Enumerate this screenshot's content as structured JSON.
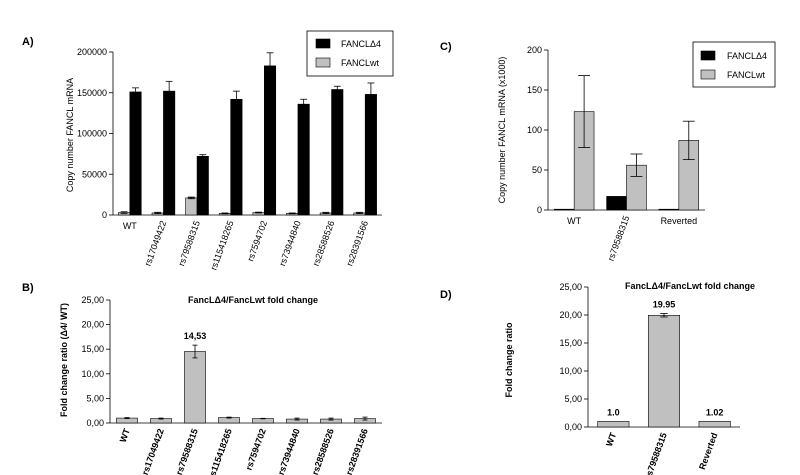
{
  "panels": {
    "A": {
      "label": "A)",
      "ylabel": "Copy number FANCL mRNA",
      "legend": [
        "FANCLΔ4",
        "FANCLwt"
      ]
    },
    "B": {
      "label": "B)",
      "title": "FancLΔ4/FancLwt fold change",
      "ylabel": "Fold change ratio (Δ4/ WT)"
    },
    "C": {
      "label": "C)",
      "ylabel": "Copy number FANCL mRNA (x1000)",
      "legend": [
        "FANCLΔ4",
        "FANCLwt"
      ]
    },
    "D": {
      "label": "D)",
      "title": "FancLΔ4/FancLwt fold change",
      "ylabel": "Fold change ratio"
    }
  },
  "colors": {
    "delta4": "#000000",
    "wt": "#c0c0c0",
    "ratio": "#c0c0c0"
  },
  "chart_data": [
    {
      "id": "A",
      "type": "bar",
      "categories": [
        "WT",
        "rs17049422",
        "rs79588315",
        "rs115418265",
        "rs7594702",
        "rs73944840",
        "rs28588526",
        "rs28391566"
      ],
      "series": [
        {
          "name": "FANCLΔ4",
          "values": [
            151000,
            152000,
            72000,
            142000,
            183000,
            136000,
            154000,
            148000
          ],
          "err": [
            5000,
            12000,
            2000,
            10000,
            16000,
            6000,
            4000,
            14000
          ]
        },
        {
          "name": "FANCLwt",
          "values": [
            3000,
            2500,
            21000,
            2000,
            3000,
            2000,
            2500,
            2500
          ],
          "err": [
            1000,
            800,
            1000,
            500,
            500,
            500,
            800,
            800
          ]
        }
      ],
      "ylim": [
        0,
        200000
      ],
      "yticks": [
        0,
        50000,
        100000,
        150000,
        200000
      ],
      "ytick_labels": [
        "0",
        "50000",
        "100000",
        "150000",
        "200000"
      ]
    },
    {
      "id": "B",
      "type": "bar",
      "categories": [
        "WT",
        "rs17049422",
        "rs79588315",
        "rs115418265",
        "rs7594702",
        "rs73944840",
        "rs28588526",
        "rs28391566"
      ],
      "values": [
        1.0,
        0.9,
        14.53,
        1.1,
        0.9,
        0.8,
        0.8,
        0.9
      ],
      "err": [
        0.1,
        0.1,
        1.3,
        0.1,
        0.05,
        0.2,
        0.2,
        0.3
      ],
      "data_labels": [
        "",
        "",
        "14,53",
        "",
        "",
        "",
        "",
        ""
      ],
      "ylim": [
        0,
        25
      ],
      "yticks": [
        0,
        5,
        10,
        15,
        20,
        25
      ],
      "ytick_labels": [
        "0,00",
        "5,00",
        "10,00",
        "15,00",
        "20,00",
        "25,00"
      ]
    },
    {
      "id": "C",
      "type": "bar",
      "categories": [
        "WT",
        "rs79588315",
        "Reverted"
      ],
      "series": [
        {
          "name": "FANCLΔ4",
          "values": [
            1,
            17,
            1
          ],
          "err": [
            0,
            0,
            0
          ]
        },
        {
          "name": "FANCLwt",
          "values": [
            123,
            56,
            87
          ],
          "err": [
            45,
            14,
            24
          ]
        }
      ],
      "ylim": [
        0,
        200
      ],
      "yticks": [
        0,
        50,
        100,
        150,
        200
      ],
      "ytick_labels": [
        "0",
        "50",
        "100",
        "150",
        "200"
      ]
    },
    {
      "id": "D",
      "type": "bar",
      "categories": [
        "WT",
        "rs79588315",
        "Reverted"
      ],
      "values": [
        1.0,
        19.95,
        1.02
      ],
      "err": [
        0,
        0.3,
        0
      ],
      "data_labels": [
        "1.0",
        "19.95",
        "1.02"
      ],
      "ylim": [
        0,
        25
      ],
      "yticks": [
        0,
        5,
        10,
        15,
        20,
        25
      ],
      "ytick_labels": [
        "0,00",
        "5,00",
        "10,00",
        "15,00",
        "20,00",
        "25,00"
      ]
    }
  ]
}
